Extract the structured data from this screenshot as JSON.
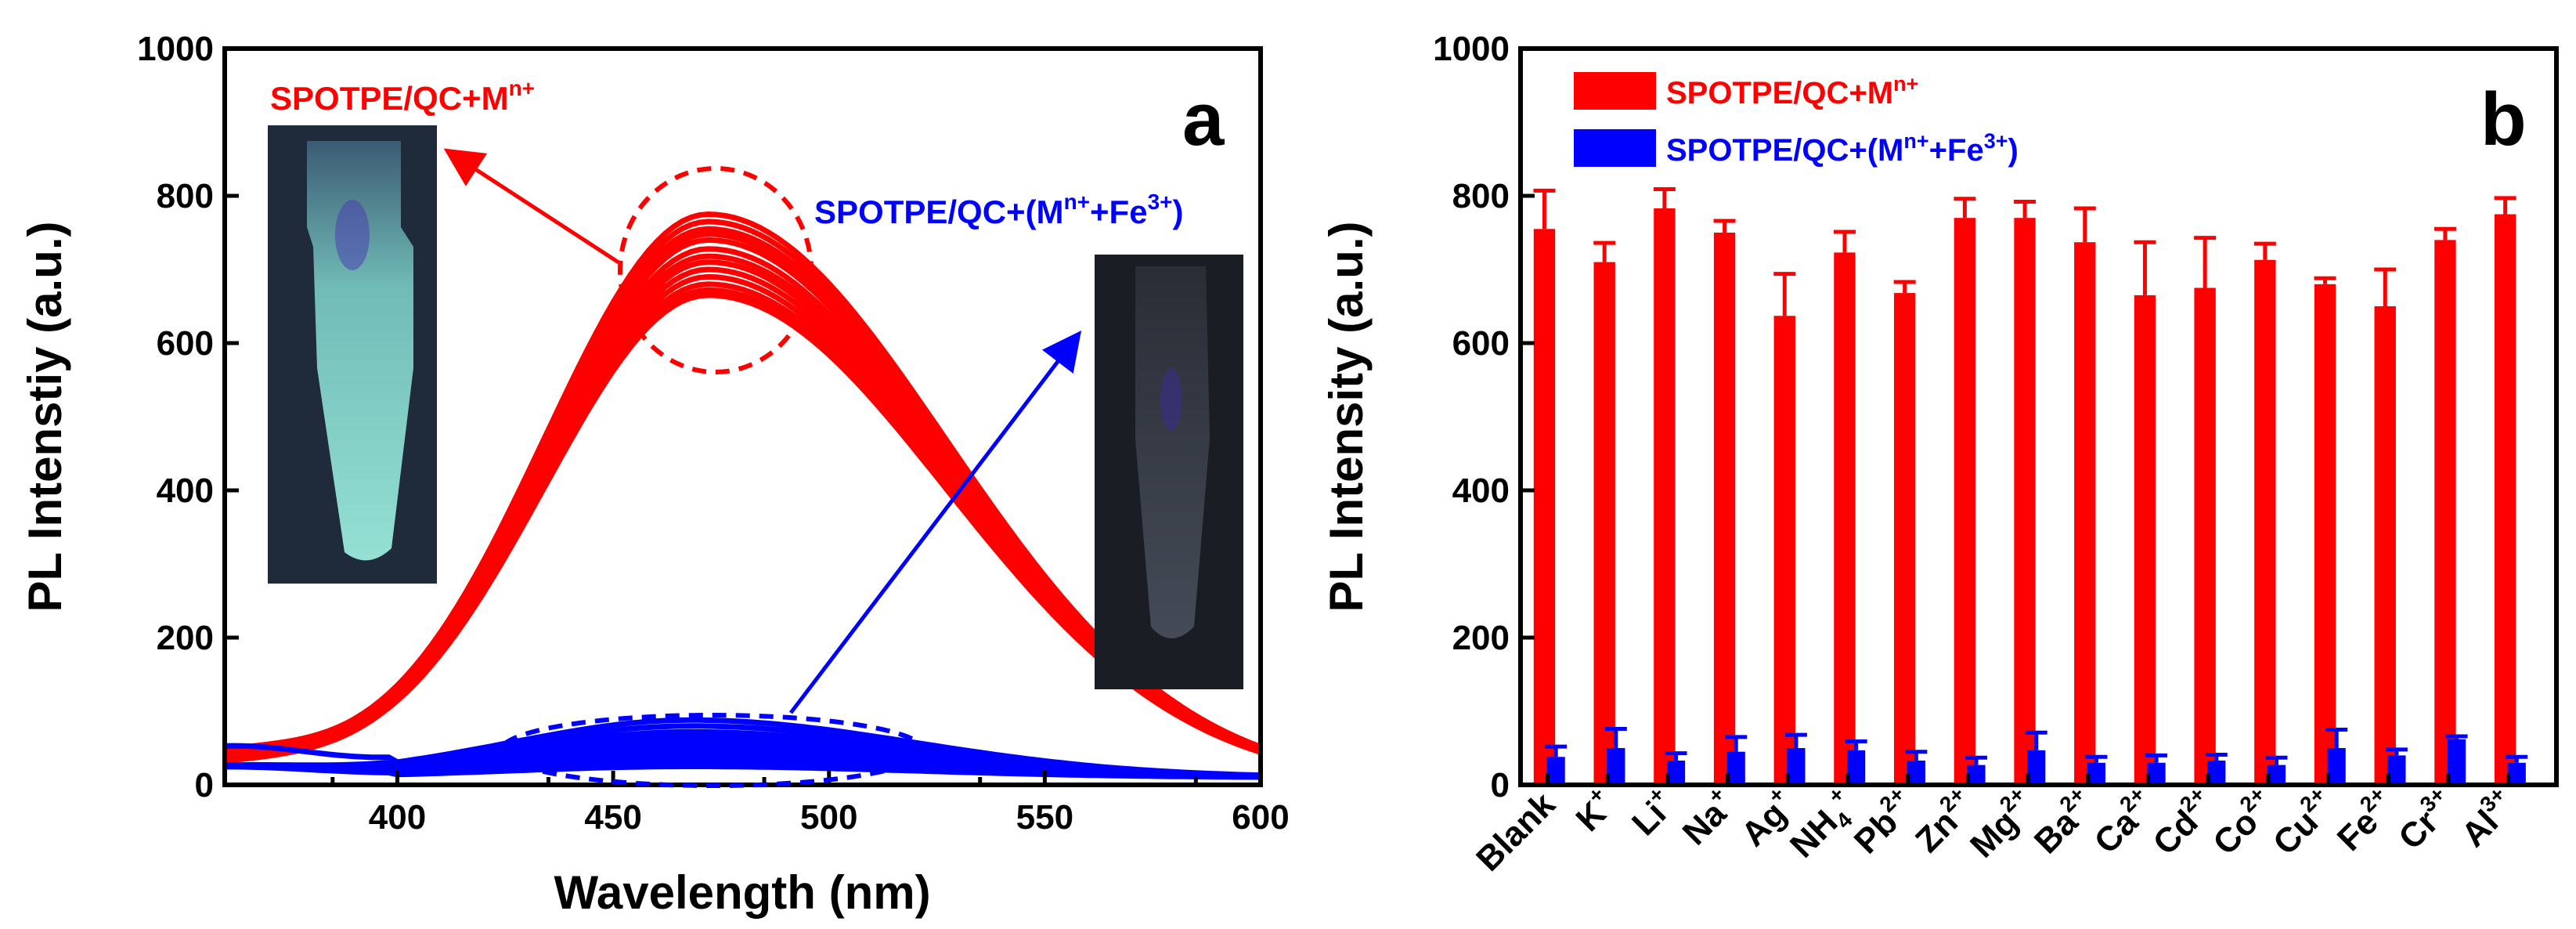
{
  "chart_data": [
    {
      "type": "line",
      "panel_label": "a",
      "xlabel": "Wavelength (nm)",
      "ylabel": "PL Intenstiy (a.u.)",
      "xlim": [
        360,
        600
      ],
      "ylim": [
        0,
        1000
      ],
      "xticks": [
        400,
        450,
        500,
        550,
        600
      ],
      "yticks": [
        0,
        200,
        400,
        600,
        800,
        1000
      ],
      "annotations": {
        "red_main": "SPOTPE/QC+M",
        "red_sup": "n+",
        "blue_main": "SPOTPE/QC+(M",
        "blue_sup1": "n+",
        "blue_mid": "+Fe",
        "blue_sup2": "3+",
        "blue_end": ")"
      },
      "series": [
        {
          "name": "SPOTPE/QC+Mn+",
          "color": "#ff0000",
          "peak_x": 472,
          "peak_values": [
            775,
            765,
            755,
            748,
            740,
            728,
            718,
            710,
            700,
            690,
            680,
            672,
            665
          ]
        },
        {
          "name": "SPOTPE/QC+(Mn++Fe3+)",
          "color": "#0000ff",
          "peak_x": 468,
          "peak_values": [
            78,
            70,
            62,
            55,
            48,
            42,
            36,
            30,
            25,
            20,
            15
          ]
        }
      ],
      "photos": [
        {
          "name": "bright-vial",
          "tint": "#7fd6c8"
        },
        {
          "name": "quenched-vial",
          "tint": "#5c6470"
        }
      ]
    },
    {
      "type": "bar",
      "panel_label": "b",
      "ylabel": "PL Intensity (a.u.)",
      "ylim": [
        0,
        1000
      ],
      "yticks": [
        0,
        200,
        400,
        600,
        800,
        1000
      ],
      "categories": [
        {
          "base": "Blank",
          "sub": "",
          "sup": ""
        },
        {
          "base": "K",
          "sub": "",
          "sup": "+"
        },
        {
          "base": "Li",
          "sub": "",
          "sup": "+"
        },
        {
          "base": "Na",
          "sub": "",
          "sup": "+"
        },
        {
          "base": "Ag",
          "sub": "",
          "sup": "+"
        },
        {
          "base": "NH",
          "sub": "4",
          "sup": "+"
        },
        {
          "base": "Pb",
          "sub": "",
          "sup": "2+"
        },
        {
          "base": "Zn",
          "sub": "",
          "sup": "2+"
        },
        {
          "base": "Mg",
          "sub": "",
          "sup": "2+"
        },
        {
          "base": "Ba",
          "sub": "",
          "sup": "2+"
        },
        {
          "base": "Ca",
          "sub": "",
          "sup": "2+"
        },
        {
          "base": "Cd",
          "sub": "",
          "sup": "2+"
        },
        {
          "base": "Co",
          "sub": "",
          "sup": "2+"
        },
        {
          "base": "Cu",
          "sub": "",
          "sup": "2+"
        },
        {
          "base": "Fe",
          "sub": "",
          "sup": "2+"
        },
        {
          "base": "Cr",
          "sub": "",
          "sup": "3+"
        },
        {
          "base": "Al",
          "sub": "",
          "sup": "3+"
        }
      ],
      "legend": {
        "red_main": "SPOTPE/QC+M",
        "red_sup": "n+",
        "blue_main": "SPOTPE/QC+(M",
        "blue_sup1": "n+",
        "blue_mid": "+Fe",
        "blue_sup2": "3+",
        "blue_end": ")"
      },
      "series": [
        {
          "name": "SPOTPE/QC+Mn+",
          "color": "#ff0000",
          "values": [
            755,
            710,
            783,
            750,
            637,
            723,
            668,
            770,
            770,
            737,
            665,
            675,
            713,
            680,
            650,
            740,
            775
          ],
          "errors": [
            52,
            26,
            26,
            16,
            57,
            28,
            15,
            26,
            22,
            46,
            72,
            68,
            22,
            8,
            50,
            15,
            22
          ]
        },
        {
          "name": "SPOTPE/QC+(Mn++Fe3+)",
          "color": "#0000ff",
          "values": [
            38,
            50,
            33,
            45,
            50,
            47,
            33,
            27,
            47,
            30,
            30,
            33,
            27,
            50,
            40,
            62,
            30
          ],
          "errors": [
            14,
            26,
            10,
            20,
            18,
            12,
            12,
            10,
            24,
            8,
            10,
            8,
            10,
            25,
            8,
            4,
            8
          ]
        }
      ]
    }
  ]
}
